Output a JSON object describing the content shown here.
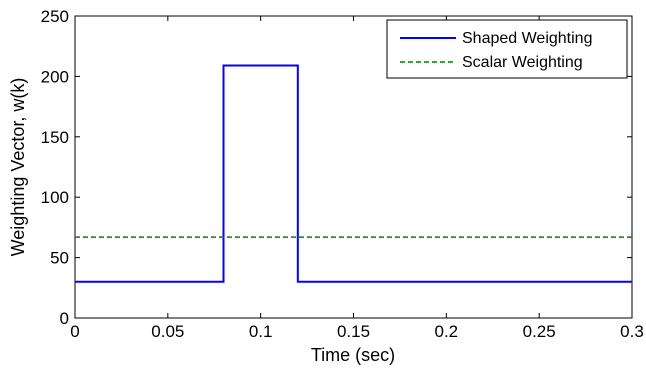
{
  "chart_data": {
    "type": "line",
    "title": "",
    "xlabel": "Time (sec)",
    "ylabel": "Weighting Vector, w(k)",
    "xlim": [
      0,
      0.3
    ],
    "ylim": [
      0,
      250
    ],
    "x_ticks": [
      "0",
      "0.05",
      "0.1",
      "0.15",
      "0.2",
      "0.25",
      "0.3"
    ],
    "y_ticks": [
      "0",
      "50",
      "100",
      "150",
      "200",
      "250"
    ],
    "grid": false,
    "legend_position": "top-right",
    "series": [
      {
        "name": "Shaped Weighting",
        "color": "#0000ff",
        "line_style": "solid",
        "x": [
          0,
          0.08,
          0.08,
          0.12,
          0.12,
          0.3
        ],
        "y": [
          30,
          30,
          209,
          209,
          30,
          30
        ]
      },
      {
        "name": "Scalar Weighting",
        "color": "#008000",
        "line_style": "dashed",
        "x": [
          0,
          0.3
        ],
        "y": [
          67,
          67
        ]
      }
    ]
  }
}
